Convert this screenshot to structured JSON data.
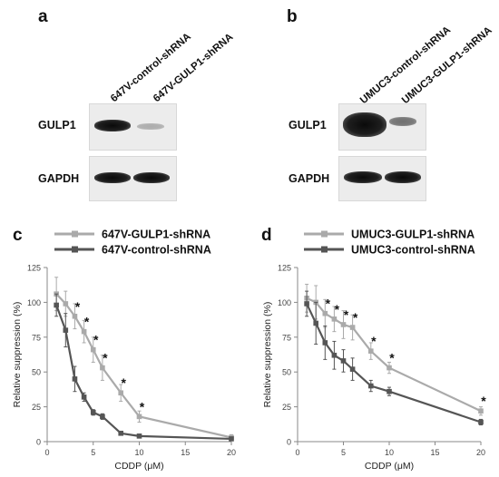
{
  "panels": {
    "a": {
      "letter": "a",
      "lanes": [
        "647V-control-shRNA",
        "647V-GULP1-shRNA"
      ],
      "rows": [
        "GULP1",
        "GAPDH"
      ],
      "bands": {
        "GULP1": [
          1.0,
          0.12
        ],
        "GAPDH": [
          1.0,
          0.95
        ]
      }
    },
    "b": {
      "letter": "b",
      "lanes": [
        "UMUC3-control-shRNA",
        "UMUC3-GULP1-shRNA"
      ],
      "rows": [
        "GULP1",
        "GAPDH"
      ],
      "bands": {
        "GULP1": [
          1.0,
          0.35
        ],
        "GAPDH": [
          1.0,
          0.95
        ]
      }
    },
    "c": {
      "letter": "c"
    },
    "d": {
      "letter": "d"
    }
  },
  "chart_data": [
    {
      "panel": "c",
      "type": "line",
      "xlabel": "CDDP (μM)",
      "ylabel": "Relative suppression (%)",
      "xlim": [
        0,
        20
      ],
      "ylim": [
        0,
        125
      ],
      "xticks": [
        0,
        5,
        10,
        15,
        20
      ],
      "yticks": [
        0,
        25,
        50,
        75,
        100,
        125
      ],
      "legend_position": "top",
      "series": [
        {
          "name": "647V-GULP1-shRNA",
          "color": "#aaaaaa",
          "x": [
            1,
            2,
            3,
            4,
            5,
            6,
            8,
            10,
            20
          ],
          "values": [
            106,
            99,
            90,
            79,
            66,
            53,
            35,
            18,
            3
          ],
          "errors": [
            12,
            9,
            9,
            8,
            9,
            9,
            6,
            4,
            2
          ]
        },
        {
          "name": "647V-control-shRNA",
          "color": "#555555",
          "x": [
            1,
            2,
            3,
            4,
            5,
            6,
            8,
            10,
            20
          ],
          "values": [
            98,
            80,
            45,
            32,
            21,
            18,
            6,
            4,
            2
          ],
          "errors": [
            8,
            12,
            9,
            3,
            2,
            2,
            1,
            1,
            1
          ]
        }
      ],
      "significance": {
        "marker": "*",
        "x": [
          3,
          4,
          5,
          6,
          8,
          10
        ]
      }
    },
    {
      "panel": "d",
      "type": "line",
      "xlabel": "CDDP (μM)",
      "ylabel": "Relative suppression (%)",
      "xlim": [
        0,
        20
      ],
      "ylim": [
        0,
        125
      ],
      "xticks": [
        0,
        5,
        10,
        15,
        20
      ],
      "yticks": [
        0,
        25,
        50,
        75,
        100,
        125
      ],
      "legend_position": "top",
      "series": [
        {
          "name": "UMUC3-GULP1-shRNA",
          "color": "#aaaaaa",
          "x": [
            1,
            2,
            3,
            4,
            5,
            6,
            8,
            10,
            20
          ],
          "values": [
            103,
            100,
            92,
            88,
            84,
            82,
            65,
            53,
            22
          ],
          "errors": [
            10,
            12,
            10,
            9,
            10,
            9,
            6,
            4,
            3
          ]
        },
        {
          "name": "UMUC3-control-shRNA",
          "color": "#555555",
          "x": [
            1,
            2,
            3,
            4,
            5,
            6,
            8,
            10,
            20
          ],
          "values": [
            99,
            85,
            71,
            62,
            58,
            52,
            40,
            36,
            14
          ],
          "errors": [
            9,
            15,
            12,
            10,
            8,
            8,
            4,
            3,
            2
          ]
        }
      ],
      "significance": {
        "marker": "*",
        "x": [
          3,
          4,
          5,
          6,
          8,
          10,
          20
        ]
      }
    }
  ]
}
